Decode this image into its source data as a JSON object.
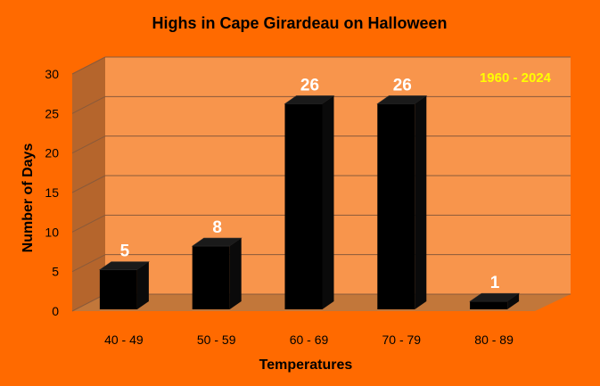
{
  "colors": {
    "background": "#ff6a00",
    "plot_wall": "#f8954c",
    "side_wall": "#b5652c",
    "floor": "#c2773a",
    "gridline": "#8a5a3a",
    "bar": "#000000",
    "data_label": "#ffffff",
    "annotation": "#ffff00"
  },
  "chart_data": {
    "type": "bar",
    "title": "Highs in Cape Girardeau on Halloween",
    "xlabel": "Temperatures",
    "ylabel": "Number of Days",
    "categories": [
      "40 - 49",
      "50 - 59",
      "60 - 69",
      "70 - 79",
      "80 - 89"
    ],
    "values": [
      5,
      8,
      26,
      26,
      1
    ],
    "data_labels": [
      "5",
      "8",
      "26",
      "26",
      "1"
    ],
    "ylim": [
      0,
      30
    ],
    "yticks": [
      "0",
      "5",
      "10",
      "15",
      "20",
      "25",
      "30"
    ],
    "grid": true,
    "legend": "none",
    "annotation": "1960 - 2024"
  }
}
